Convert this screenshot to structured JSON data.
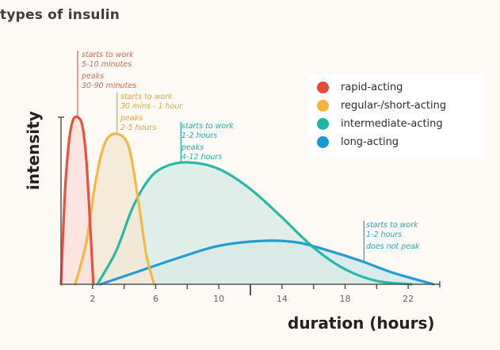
{
  "title": "types of insulin",
  "chart_data": {
    "type": "area",
    "title": "types of insulin",
    "xlabel": "duration (hours)",
    "ylabel": "intensity",
    "xlim": [
      0,
      24
    ],
    "ylim": [
      0,
      1
    ],
    "x_ticks": [
      2,
      6,
      10,
      14,
      18,
      22
    ],
    "x_minor_ticks": [
      2,
      4,
      6,
      8,
      10,
      12,
      14,
      16,
      18,
      20,
      22
    ],
    "grid": false,
    "legend_position": "top-right",
    "series": [
      {
        "name": "rapid-acting",
        "color": "#e8483a",
        "fill": "#fbe1dd",
        "onset_h": 0.0,
        "peak_h": 1.05,
        "end_h": 2.05,
        "peak_intensity": 1.0,
        "x": [
          0,
          0.25,
          0.5,
          0.75,
          1.05,
          1.35,
          1.6,
          1.85,
          2.05
        ],
        "y": [
          0,
          0.55,
          0.85,
          0.98,
          1.0,
          0.95,
          0.75,
          0.35,
          0
        ]
      },
      {
        "name": "regular-/short-acting",
        "color": "#f6b43c",
        "fill": "#f4e7d3",
        "onset_h": 0.9,
        "peak_h": 3.55,
        "end_h": 5.9,
        "peak_intensity": 0.9,
        "x": [
          0.9,
          1.6,
          2.2,
          2.8,
          3.55,
          4.3,
          4.9,
          5.4,
          5.9
        ],
        "y": [
          0,
          0.25,
          0.62,
          0.85,
          0.9,
          0.82,
          0.5,
          0.18,
          0
        ]
      },
      {
        "name": "intermediate-acting",
        "color": "#1fb5a3",
        "fill": "#d9ebe6",
        "onset_h": 2.3,
        "peak_h": 8.0,
        "end_h": 22.2,
        "peak_intensity": 0.73,
        "x": [
          2.3,
          3.5,
          4.5,
          5.5,
          6.5,
          8.0,
          10.0,
          12.0,
          14.0,
          16.0,
          18.0,
          20.0,
          22.2
        ],
        "y": [
          0,
          0.2,
          0.45,
          0.62,
          0.7,
          0.73,
          0.69,
          0.57,
          0.4,
          0.22,
          0.09,
          0.02,
          0
        ]
      },
      {
        "name": "long-acting",
        "color": "#1898d3",
        "fill": "#d4e7ea",
        "onset_h": 2.5,
        "peak_h": 12.8,
        "end_h": 23.6,
        "peak_intensity": 0.26,
        "x": [
          2.5,
          5.0,
          7.5,
          10.0,
          12.8,
          15.0,
          17.0,
          19.0,
          21.0,
          23.6
        ],
        "y": [
          0,
          0.08,
          0.16,
          0.23,
          0.26,
          0.25,
          0.2,
          0.14,
          0.07,
          0
        ]
      }
    ],
    "annotations": [
      {
        "series": "rapid-acting",
        "lines": [
          "starts to work",
          "5-10 minutes",
          "",
          "peaks",
          "30-90 minutes"
        ]
      },
      {
        "series": "regular-/short-acting",
        "lines": [
          "starts to work",
          "30 mins - 1 hour",
          "",
          "peaks",
          "2-5 hours"
        ]
      },
      {
        "series": "intermediate-acting",
        "lines": [
          "starts to work",
          "1-2 hours",
          "",
          "peaks",
          "4-12 hours"
        ]
      },
      {
        "series": "long-acting",
        "lines": [
          "starts to work",
          "1-2 hours",
          "",
          "does not peak"
        ]
      }
    ]
  },
  "legend": [
    {
      "label": "rapid-acting",
      "color": "#e8483a"
    },
    {
      "label": "regular-/short-acting",
      "color": "#f6b43c"
    },
    {
      "label": "intermediate-acting",
      "color": "#1fb5a3"
    },
    {
      "label": "long-acting",
      "color": "#1898d3"
    }
  ],
  "notes": {
    "rapid": {
      "l1": "starts to work",
      "l2": "5-10 minutes",
      "l3": "peaks",
      "l4": "30-90 minutes",
      "color": "#e06a52"
    },
    "regular": {
      "l1": "starts to work",
      "l2": "30 mins - 1 hour",
      "l3": "peaks",
      "l4": "2-5 hours",
      "color": "#eea33a"
    },
    "intermediate": {
      "l1": "starts to work",
      "l2": "1-2 hours",
      "l3": "peaks",
      "l4": "4-12 hours",
      "color": "#27b3a5"
    },
    "long": {
      "l1": "starts to work",
      "l2": "1-2 hours",
      "l3": "does not peak",
      "color": "#2aa5cf"
    }
  }
}
